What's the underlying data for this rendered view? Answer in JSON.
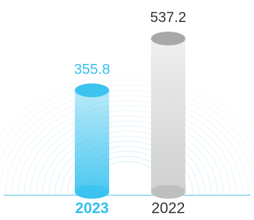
{
  "chart_data": {
    "type": "bar",
    "categories": [
      "2023",
      "2022"
    ],
    "values": [
      355.8,
      537.2
    ],
    "value_labels": [
      "355.8",
      "537.2"
    ],
    "highlighted_category": "2023",
    "ylim": [
      0,
      600
    ],
    "grid": false,
    "legend": "none",
    "colors": {
      "highlight_bar": "#3cc3ef",
      "highlight_text": "#35bfee",
      "muted_bar": "#d9d9d9",
      "muted_cap": "#a8a8a8",
      "label_text": "#333333",
      "baseline": "#6fc8ea",
      "arcs": "#8fd2ef"
    }
  }
}
